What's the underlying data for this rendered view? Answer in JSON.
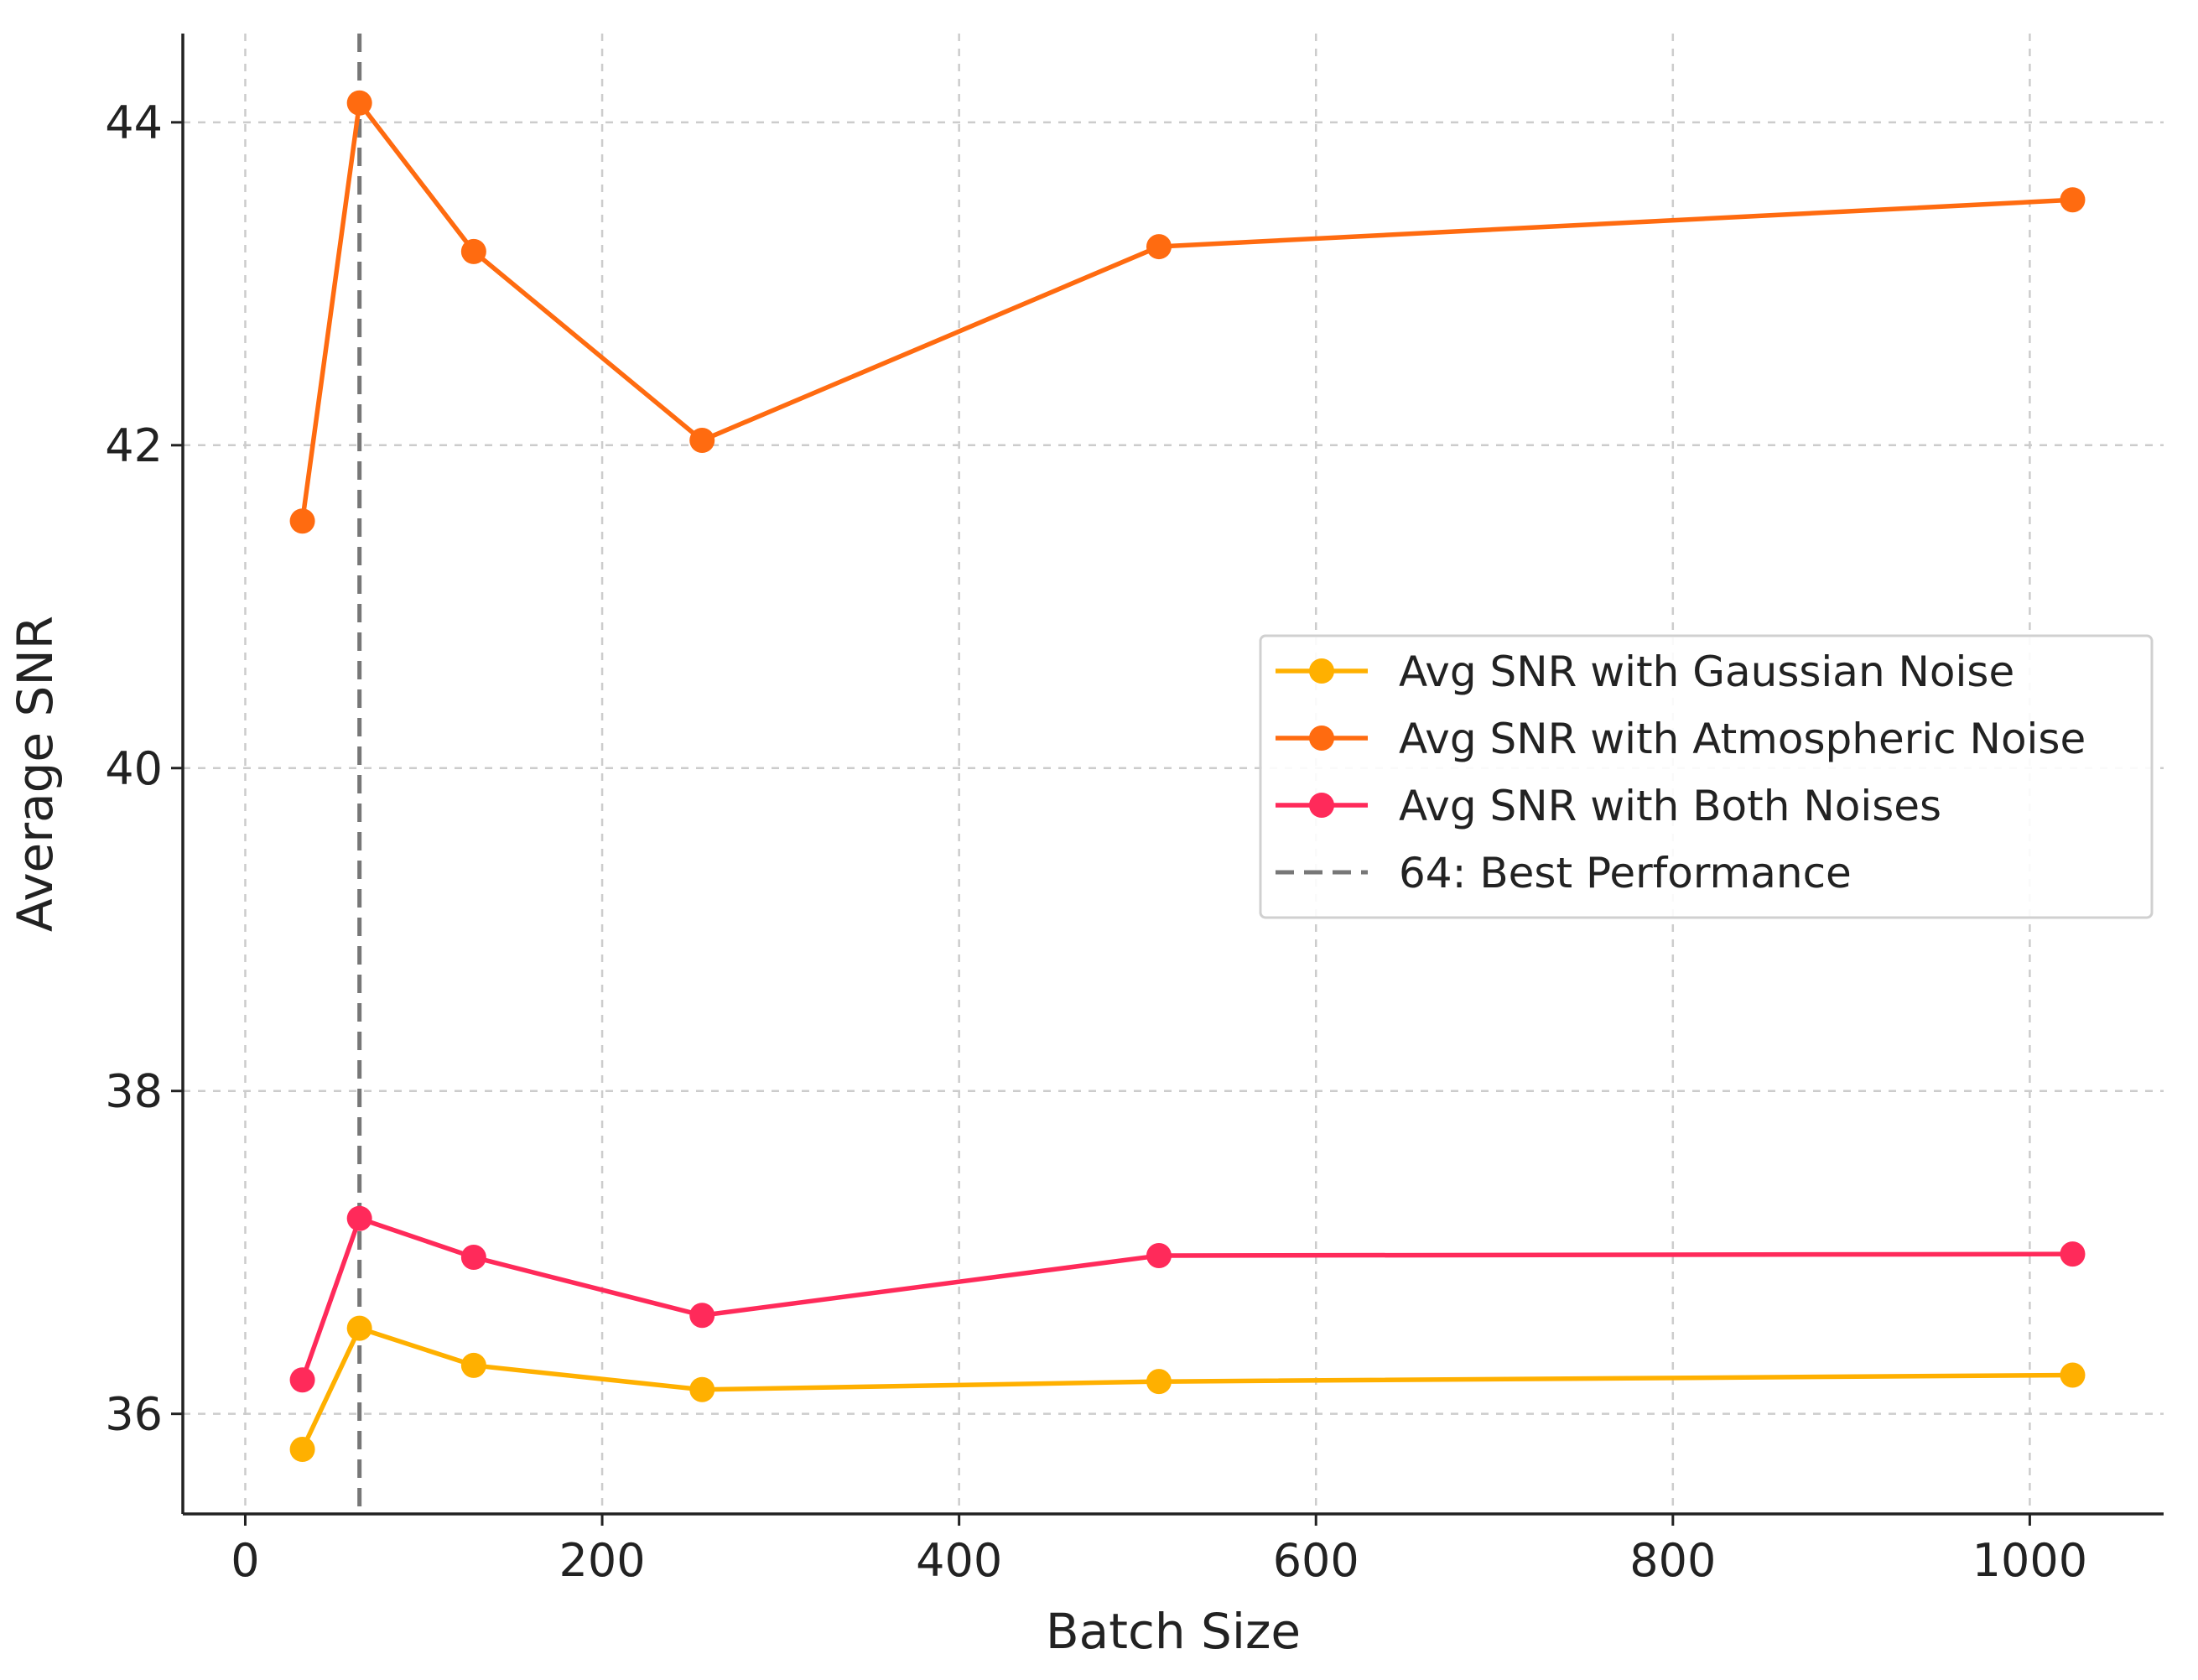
{
  "chart_data": {
    "type": "line",
    "title": "",
    "xlabel": "Batch Size",
    "ylabel": "Average SNR",
    "xlim": [
      -35,
      1075
    ],
    "ylim": [
      35.38,
      44.55
    ],
    "xticks": [
      0,
      200,
      400,
      600,
      800,
      1000
    ],
    "yticks": [
      36,
      38,
      40,
      42,
      44
    ],
    "grid": true,
    "legend_position": "center-right",
    "x": [
      32,
      64,
      128,
      256,
      512,
      1024
    ],
    "series": [
      {
        "name": "Avg SNR with Gaussian Noise",
        "color": "#ffb000",
        "marker": "circle",
        "values": [
          35.78,
          36.53,
          36.3,
          36.15,
          36.2,
          36.24
        ]
      },
      {
        "name": "Avg SNR with Atmospheric Noise",
        "color": "#ff6b10",
        "marker": "circle",
        "values": [
          41.53,
          44.12,
          43.2,
          42.03,
          43.23,
          43.52
        ]
      },
      {
        "name": "Avg SNR with Both Noises",
        "color": "#ff2a5a",
        "marker": "circle",
        "values": [
          36.21,
          37.21,
          36.97,
          36.61,
          36.98,
          36.99
        ]
      }
    ],
    "reference_lines": [
      {
        "name": "64: Best Performance",
        "orientation": "vertical",
        "x": 64,
        "color": "#777777",
        "style": "dashed"
      }
    ]
  }
}
